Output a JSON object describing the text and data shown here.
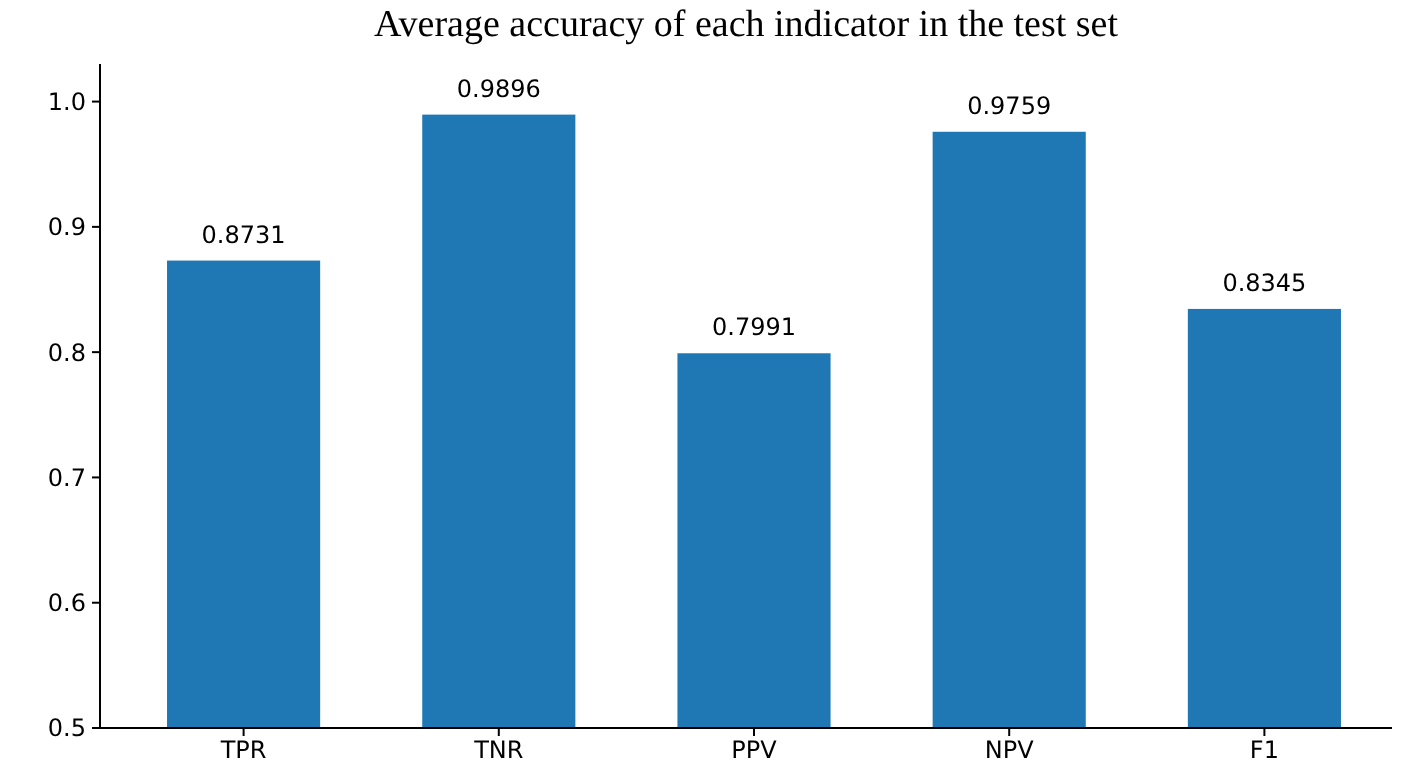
{
  "chart_data": {
    "type": "bar",
    "title": "Average accuracy of each indicator in the test set",
    "categories": [
      "TPR",
      "TNR",
      "PPV",
      "NPV",
      "F1"
    ],
    "values": [
      0.8731,
      0.9896,
      0.7991,
      0.9759,
      0.8345
    ],
    "color": "#1f77b4",
    "data_labels": true,
    "grid": false,
    "ylim": [
      0.5,
      1.03
    ],
    "yticks": [
      {
        "value": 0.5,
        "label": "0.5"
      },
      {
        "value": 0.6,
        "label": "0.6"
      },
      {
        "value": 0.7,
        "label": "0.7"
      },
      {
        "value": 0.8,
        "label": "0.8"
      },
      {
        "value": 0.9,
        "label": "0.9"
      },
      {
        "value": 1.0,
        "label": "1.0"
      }
    ]
  }
}
